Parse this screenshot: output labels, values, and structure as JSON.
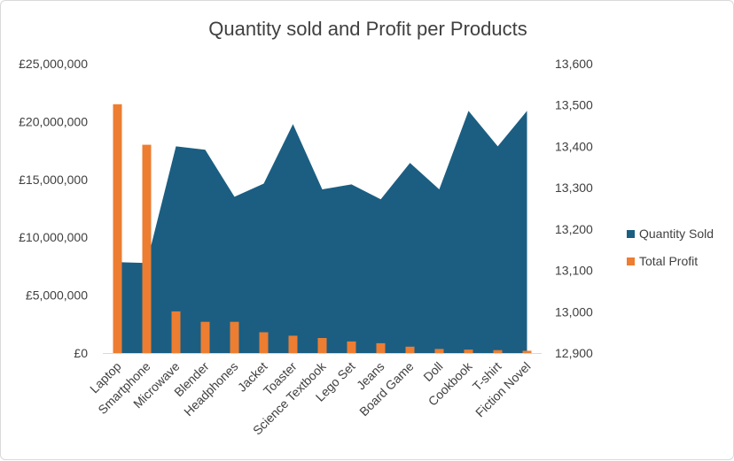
{
  "chart_data": {
    "type": "combo",
    "title": "Quantity sold and Profit per Products",
    "categories": [
      "Laptop",
      "Smartphone",
      "Microwave",
      "Blender",
      "Headphones",
      "Jacket",
      "Toaster",
      "Science Textbook",
      "Lego Set",
      "Jeans",
      "Board Game",
      "Doll",
      "Cookbook",
      "T-shirt",
      "Fiction Novel"
    ],
    "series": [
      {
        "name": "Quantity Sold",
        "type": "area",
        "axis": "secondary",
        "color": "#1b5e82",
        "values": [
          13120,
          13118,
          13400,
          13392,
          13278,
          13310,
          13454,
          13296,
          13308,
          13272,
          13360,
          13296,
          13486,
          13400,
          13486
        ]
      },
      {
        "name": "Total Profit",
        "type": "bar",
        "axis": "primary",
        "color": "#ed7d31",
        "values": [
          21500000,
          18000000,
          3600000,
          2700000,
          2700000,
          1800000,
          1500000,
          1300000,
          1000000,
          850000,
          550000,
          350000,
          300000,
          250000,
          200000
        ]
      }
    ],
    "y_primary": {
      "min": 0,
      "max": 25000000,
      "ticks": [
        "£0",
        "£5,000,000",
        "£10,000,000",
        "£15,000,000",
        "£20,000,000",
        "£25,000,000"
      ]
    },
    "y_secondary": {
      "min": 12900,
      "max": 13600,
      "ticks": [
        "12,900",
        "13,000",
        "13,100",
        "13,200",
        "13,300",
        "13,400",
        "13,500",
        "13,600"
      ]
    },
    "legend": {
      "position": "right",
      "items": [
        "Quantity Sold",
        "Total Profit"
      ]
    },
    "grid": false
  }
}
